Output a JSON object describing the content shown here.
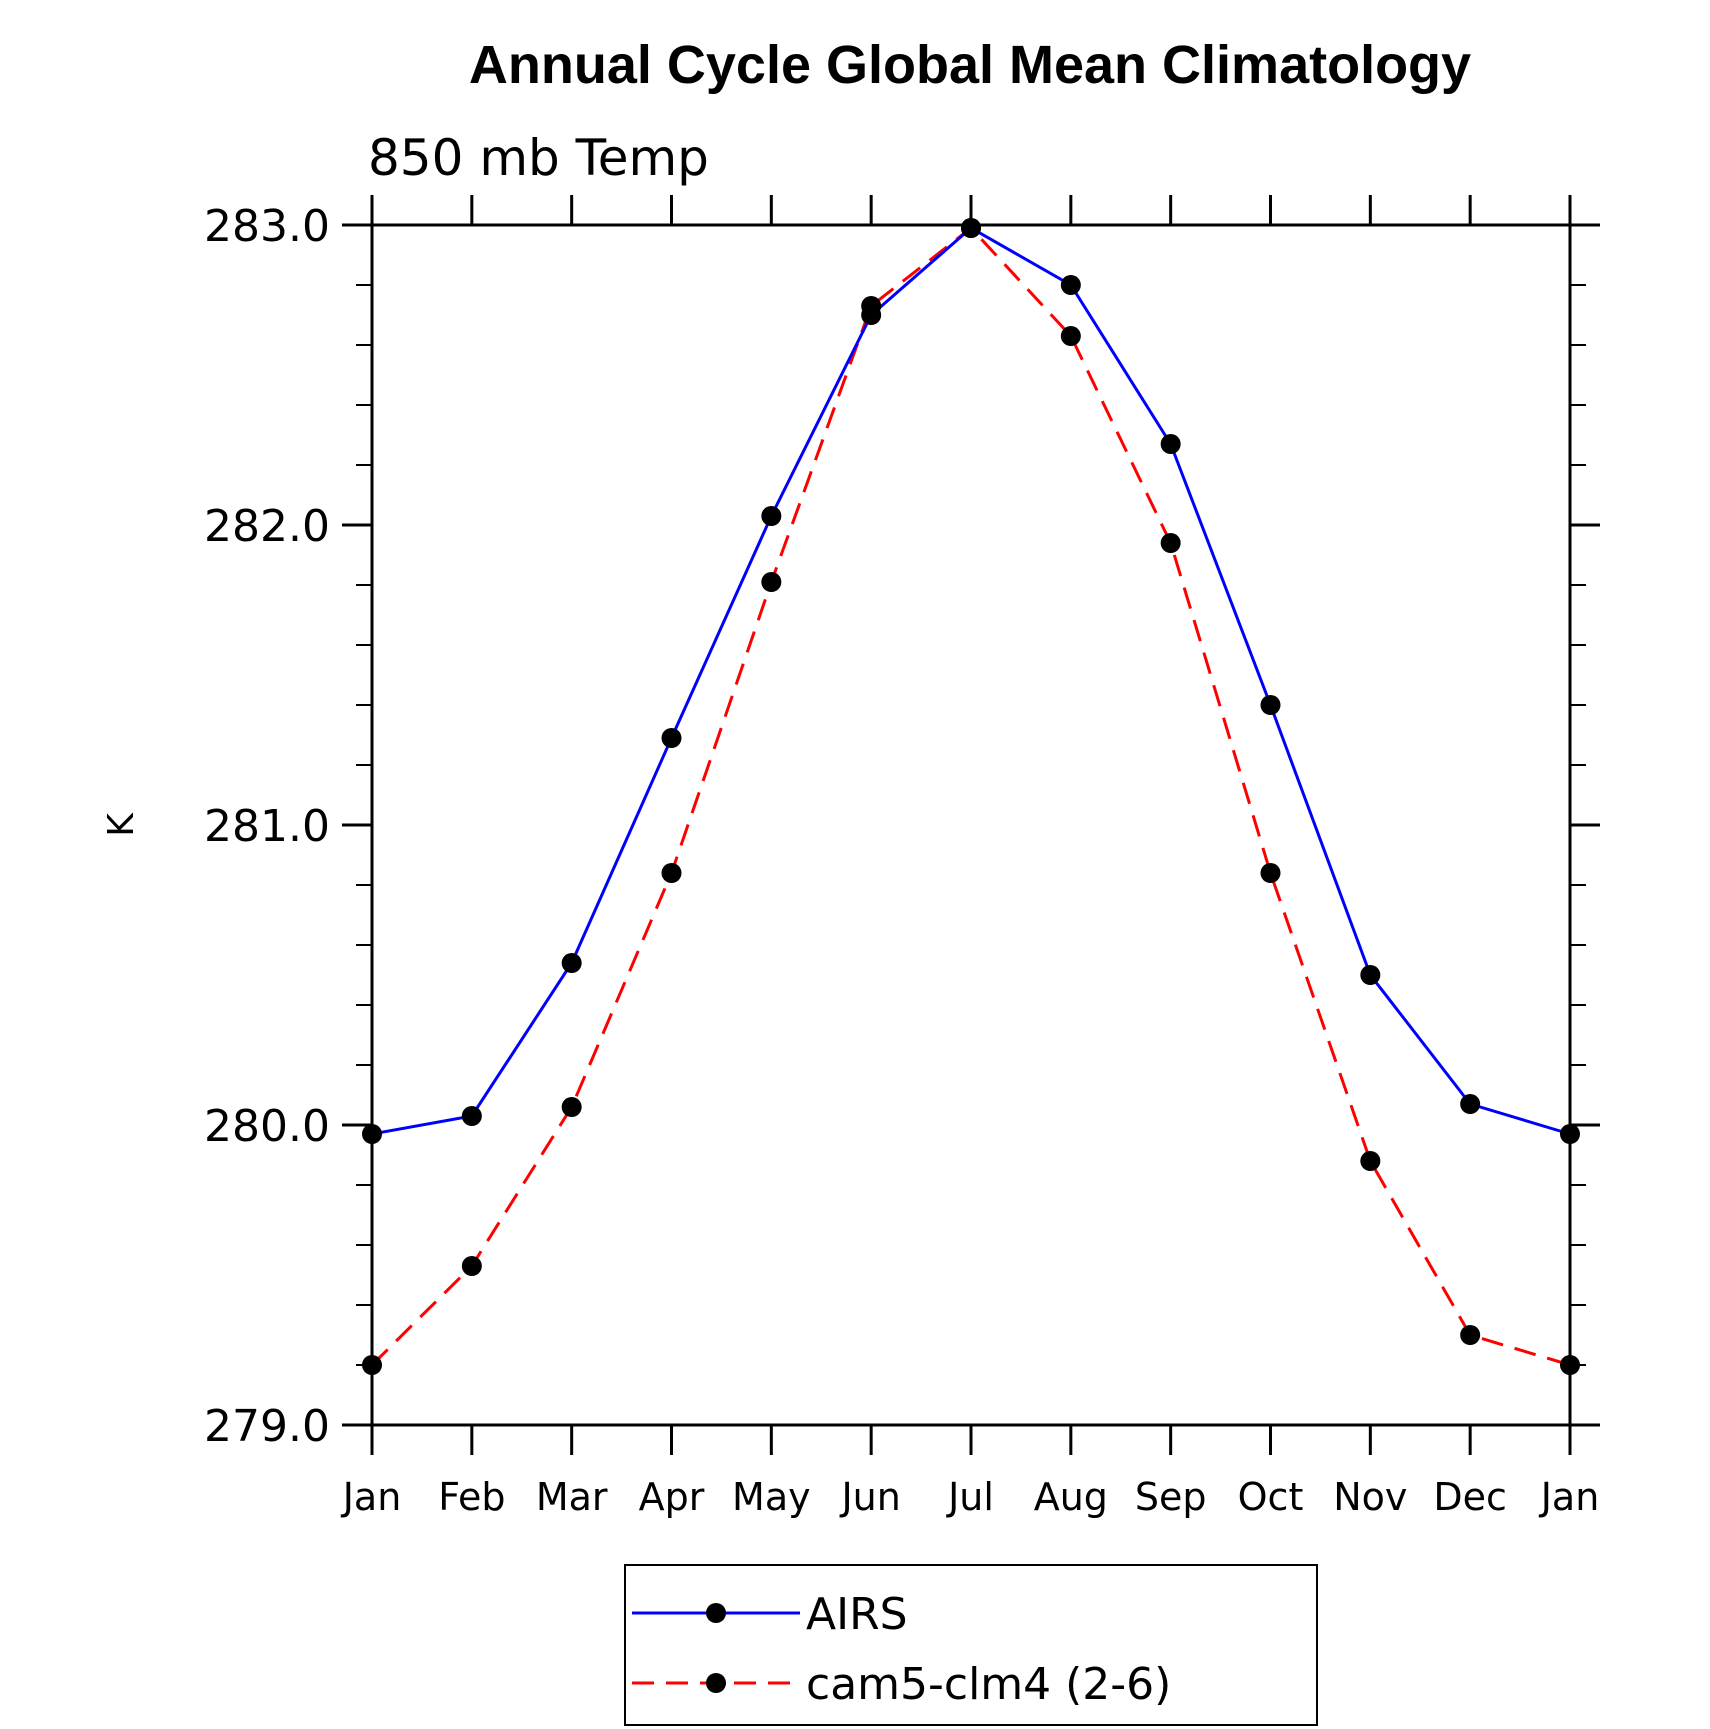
{
  "chart_data": {
    "type": "line",
    "title": "Annual Cycle Global Mean Climatology",
    "subtitle": "850 mb Temp",
    "ylabel": "K",
    "ylim": [
      279.0,
      283.0
    ],
    "yticks": [
      "283.0",
      "282.0",
      "281.0",
      "280.0",
      "279.0"
    ],
    "categories": [
      "Jan",
      "Feb",
      "Mar",
      "Apr",
      "May",
      "Jun",
      "Jul",
      "Aug",
      "Sep",
      "Oct",
      "Nov",
      "Dec",
      "Jan"
    ],
    "series": [
      {
        "name": "AIRS",
        "color": "#0000ff",
        "style": "solid",
        "marker": "filled-circle",
        "values": [
          279.97,
          280.03,
          280.54,
          281.29,
          282.03,
          282.7,
          282.99,
          282.8,
          282.27,
          281.4,
          280.5,
          280.07,
          279.97
        ]
      },
      {
        "name": "cam5-clm4 (2-6)",
        "color": "#ff0000",
        "style": "dashed",
        "marker": "filled-circle",
        "values": [
          279.2,
          279.53,
          280.06,
          280.84,
          281.81,
          282.73,
          282.99,
          282.63,
          281.94,
          280.84,
          279.88,
          279.3,
          279.2
        ]
      }
    ],
    "grid": false,
    "legend_position": "bottom-center"
  }
}
